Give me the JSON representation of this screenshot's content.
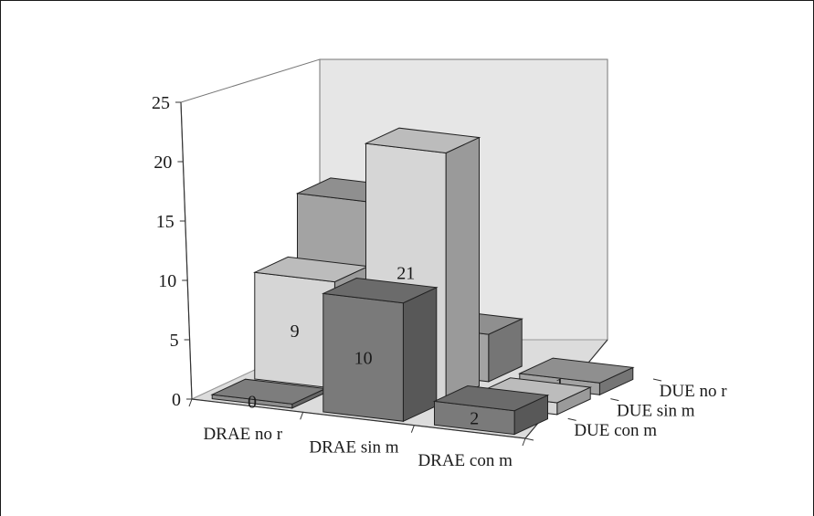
{
  "chart_data": {
    "type": "bar",
    "subtype": "3d-bar",
    "title": "",
    "x_categories": [
      "DRAE no r",
      "DRAE sin m",
      "DRAE con m"
    ],
    "depth_categories": [
      "DUE con m",
      "DUE sin m",
      "DUE no r"
    ],
    "z_ticks": [
      "0",
      "5",
      "10",
      "15",
      "20",
      "25"
    ],
    "zlim": [
      0,
      25
    ],
    "grid": false,
    "bars": [
      {
        "x": "DRAE no r",
        "depth": "DUE con m",
        "value": 0,
        "label": "0",
        "color": "#8e8e8e"
      },
      {
        "x": "DRAE no r",
        "depth": "DUE sin m",
        "value": 9,
        "label": "9",
        "color": "#d6d6d6"
      },
      {
        "x": "DRAE no r",
        "depth": "DUE no r",
        "value": 14,
        "label": "14",
        "color": "#a3a3a3"
      },
      {
        "x": "DRAE sin m",
        "depth": "DUE con m",
        "value": 10,
        "label": "10",
        "color": "#7a7a7a"
      },
      {
        "x": "DRAE sin m",
        "depth": "DUE sin m",
        "value": 21,
        "label": "21",
        "color": "#d6d6d6"
      },
      {
        "x": "DRAE sin m",
        "depth": "DUE no r",
        "value": 4,
        "label": "4",
        "color": "#a3a3a3"
      },
      {
        "x": "DRAE con m",
        "depth": "DUE con m",
        "value": 2,
        "label": "2",
        "color": "#7a7a7a"
      },
      {
        "x": "DRAE con m",
        "depth": "DUE sin m",
        "value": 1,
        "label": "1",
        "color": "#d6d6d6"
      },
      {
        "x": "DRAE con m",
        "depth": "DUE no r",
        "value": 1,
        "label": "1",
        "color": "#a3a3a3"
      }
    ]
  }
}
